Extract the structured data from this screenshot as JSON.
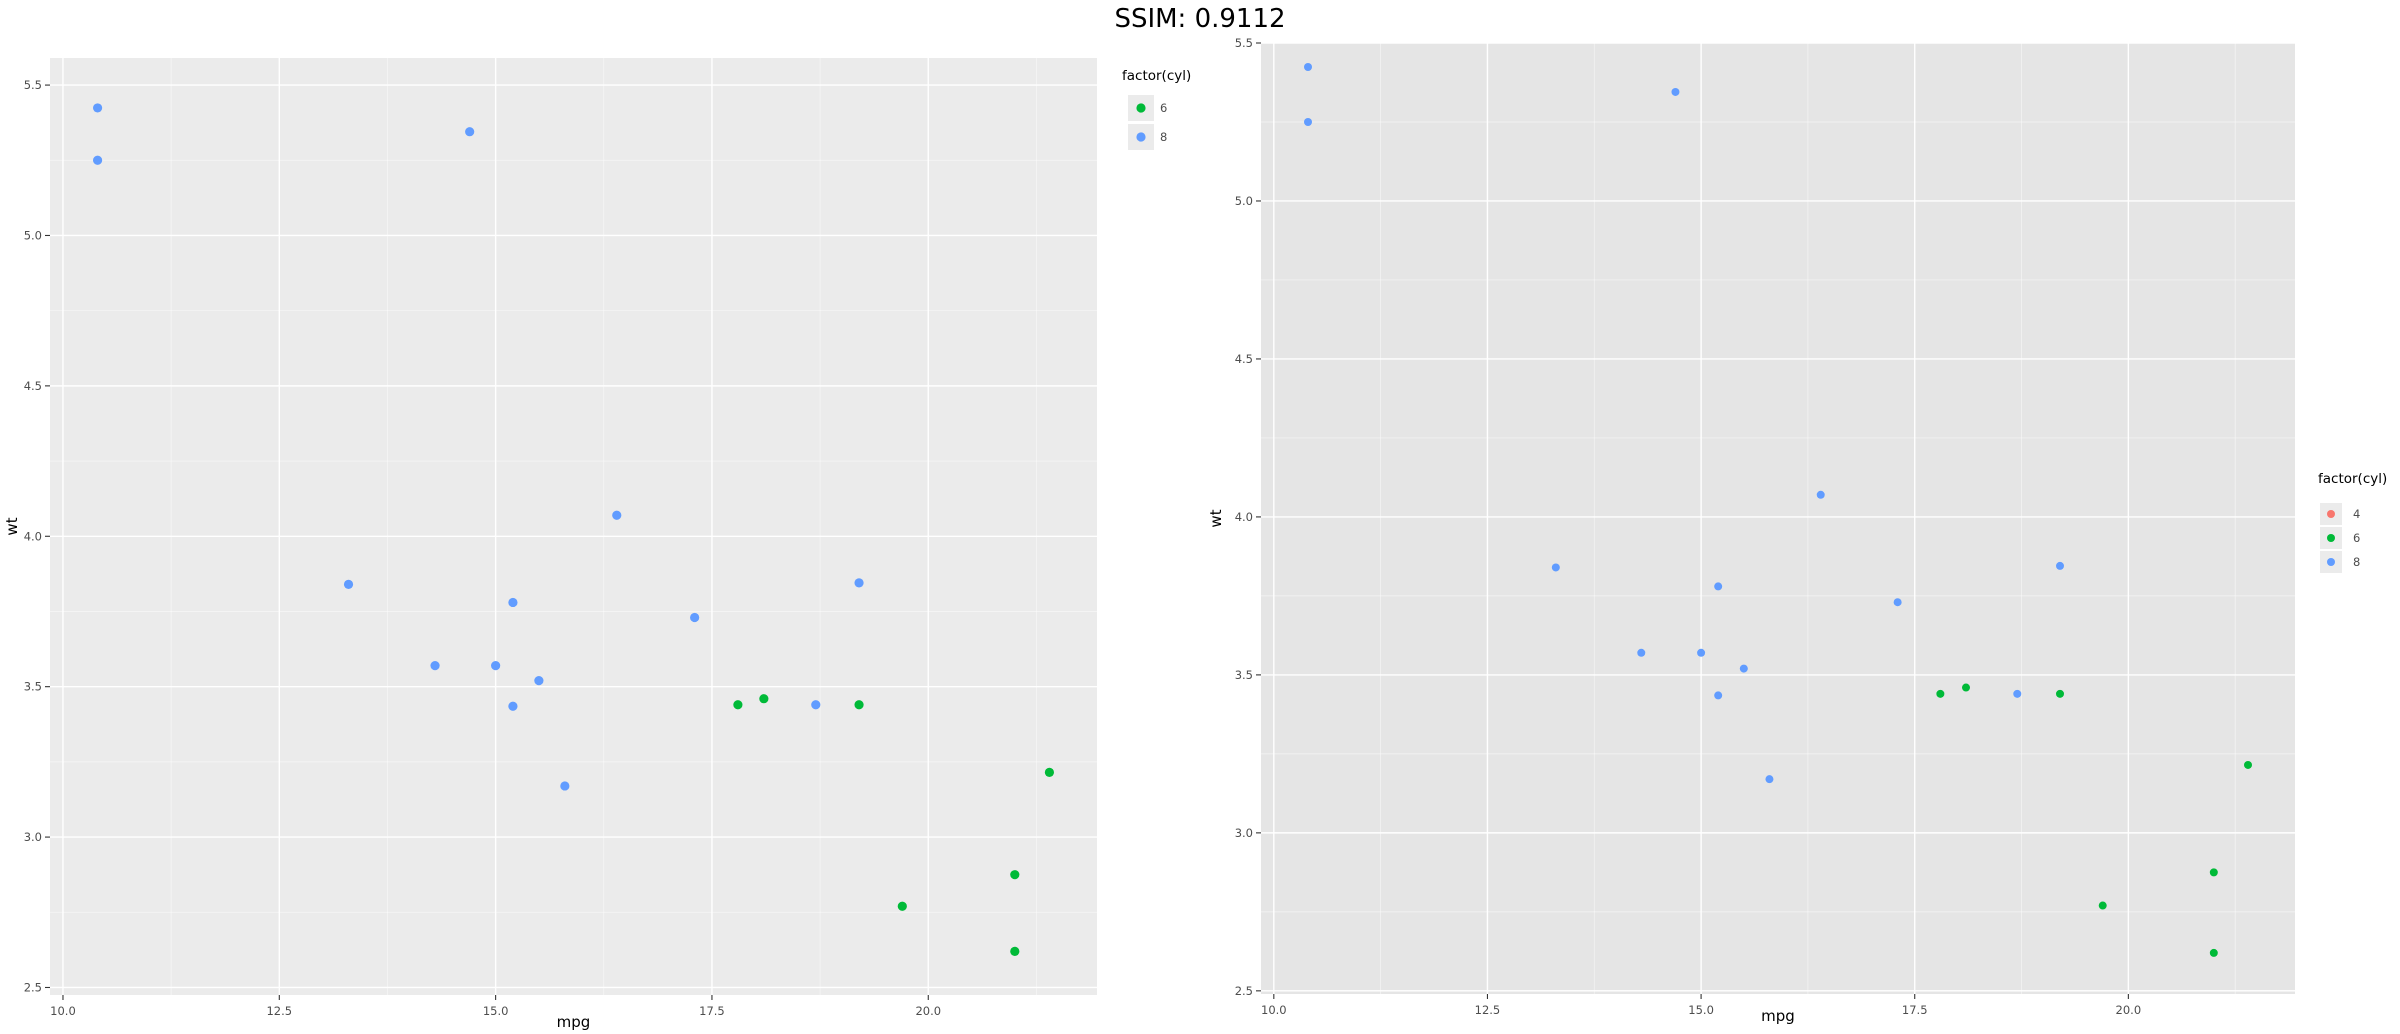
{
  "header": {
    "title": "SSIM: 0.9112"
  },
  "colors": {
    "panel_bg_left": "#ebebeb",
    "panel_bg_right": "#e5e5e5",
    "grid_major": "#ffffff",
    "axis_text": "#4d4d4d",
    "axis_title": "#000000",
    "legend_key_bg": "#ebebeb",
    "cyl_4": "#f8766d",
    "cyl_6": "#00ba38",
    "cyl_8": "#619cff"
  },
  "chart_data": [
    {
      "type": "scatter",
      "title": "",
      "xlabel": "mpg",
      "ylabel": "wt",
      "xlim": [
        9.85,
        21.95
      ],
      "ylim": [
        2.475,
        5.59
      ],
      "xticks": [
        10.0,
        12.5,
        15.0,
        17.5,
        20.0
      ],
      "xtick_labels": [
        "10.0",
        "12.5",
        "15.0",
        "17.5",
        "20.0"
      ],
      "yticks": [
        2.5,
        3.0,
        3.5,
        4.0,
        4.5,
        5.0,
        5.5
      ],
      "ytick_labels": [
        "2.5",
        "3.0",
        "3.5",
        "4.0",
        "4.5",
        "5.0",
        "5.5"
      ],
      "grid": true,
      "legend": {
        "title": "factor(cyl)",
        "position": "right-top",
        "entries": [
          {
            "label": "6",
            "color": "#00ba38"
          },
          {
            "label": "8",
            "color": "#619cff"
          }
        ]
      },
      "series": [
        {
          "name": "6",
          "color": "#00ba38",
          "points": [
            [
              21.0,
              2.62
            ],
            [
              21.0,
              2.875
            ],
            [
              21.4,
              3.215
            ],
            [
              18.1,
              3.46
            ],
            [
              19.2,
              3.44
            ],
            [
              17.8,
              3.44
            ],
            [
              19.7,
              2.77
            ]
          ]
        },
        {
          "name": "8",
          "color": "#619cff",
          "points": [
            [
              18.7,
              3.44
            ],
            [
              14.3,
              3.57
            ],
            [
              16.4,
              4.07
            ],
            [
              17.3,
              3.73
            ],
            [
              15.2,
              3.78
            ],
            [
              10.4,
              5.25
            ],
            [
              10.4,
              5.424
            ],
            [
              14.7,
              5.345
            ],
            [
              15.5,
              3.52
            ],
            [
              15.2,
              3.435
            ],
            [
              13.3,
              3.84
            ],
            [
              19.2,
              3.845
            ],
            [
              15.8,
              3.17
            ],
            [
              15.0,
              3.57
            ]
          ]
        }
      ]
    },
    {
      "type": "scatter",
      "title": "",
      "xlabel": "mpg",
      "ylabel": "wt",
      "xlim": [
        9.85,
        21.95
      ],
      "ylim": [
        2.49,
        5.5
      ],
      "xticks": [
        10.0,
        12.5,
        15.0,
        17.5,
        20.0
      ],
      "xtick_labels": [
        "10.0",
        "12.5",
        "15.0",
        "17.5",
        "20.0"
      ],
      "yticks": [
        2.5,
        3.0,
        3.5,
        4.0,
        4.5,
        5.0,
        5.5
      ],
      "ytick_labels": [
        "2.5",
        "3.0",
        "3.5",
        "4.0",
        "4.5",
        "5.0",
        "5.5"
      ],
      "grid": true,
      "legend": {
        "title": "factor(cyl)",
        "position": "right-center",
        "entries": [
          {
            "label": "4",
            "color": "#f8766d"
          },
          {
            "label": "6",
            "color": "#00ba38"
          },
          {
            "label": "8",
            "color": "#619cff"
          }
        ]
      },
      "series": [
        {
          "name": "6",
          "color": "#00ba38",
          "points": [
            [
              21.0,
              2.62
            ],
            [
              21.0,
              2.875
            ],
            [
              21.4,
              3.215
            ],
            [
              18.1,
              3.46
            ],
            [
              19.2,
              3.44
            ],
            [
              17.8,
              3.44
            ],
            [
              19.7,
              2.77
            ]
          ]
        },
        {
          "name": "8",
          "color": "#619cff",
          "points": [
            [
              18.7,
              3.44
            ],
            [
              14.3,
              3.57
            ],
            [
              16.4,
              4.07
            ],
            [
              17.3,
              3.73
            ],
            [
              15.2,
              3.78
            ],
            [
              10.4,
              5.25
            ],
            [
              10.4,
              5.424
            ],
            [
              14.7,
              5.345
            ],
            [
              15.5,
              3.52
            ],
            [
              15.2,
              3.435
            ],
            [
              13.3,
              3.84
            ],
            [
              19.2,
              3.845
            ],
            [
              15.8,
              3.17
            ],
            [
              15.0,
              3.57
            ]
          ]
        }
      ]
    }
  ]
}
